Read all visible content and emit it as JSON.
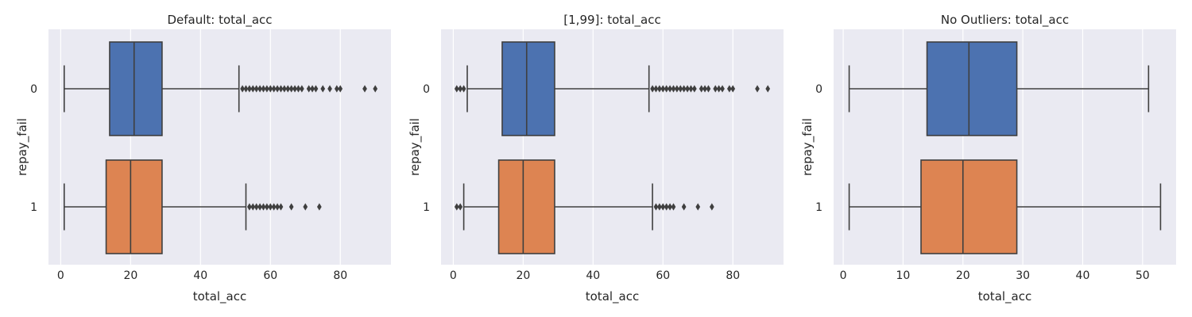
{
  "chart_data": [
    {
      "type": "boxplot",
      "title": "Default: total_acc",
      "xlabel": "total_acc",
      "ylabel": "repay_fail",
      "xlim": [
        -3.5,
        94.5
      ],
      "xticks": [
        0,
        20,
        40,
        60,
        80
      ],
      "orientation": "horizontal",
      "grid": true,
      "categories": [
        "0",
        "1"
      ],
      "colors": [
        "#4c72b0",
        "#dd8452"
      ],
      "boxes": [
        {
          "category": "0",
          "whisker_low": 1,
          "q1": 14,
          "median": 21,
          "q3": 29,
          "whisker_high": 51,
          "outliers": [
            52,
            53,
            54,
            55,
            56,
            57,
            58,
            59,
            60,
            61,
            62,
            63,
            64,
            65,
            66,
            67,
            68,
            69,
            71,
            72,
            73,
            75,
            77,
            79,
            80,
            87,
            90
          ]
        },
        {
          "category": "1",
          "whisker_low": 1,
          "q1": 13,
          "median": 20,
          "q3": 29,
          "whisker_high": 53,
          "outliers": [
            54,
            55,
            56,
            57,
            58,
            59,
            60,
            61,
            62,
            63,
            66,
            70,
            74
          ]
        }
      ]
    },
    {
      "type": "boxplot",
      "title": "[1,99]: total_acc",
      "xlabel": "total_acc",
      "ylabel": "repay_fail",
      "xlim": [
        -3.5,
        94.5
      ],
      "xticks": [
        0,
        20,
        40,
        60,
        80
      ],
      "orientation": "horizontal",
      "grid": true,
      "categories": [
        "0",
        "1"
      ],
      "colors": [
        "#4c72b0",
        "#dd8452"
      ],
      "boxes": [
        {
          "category": "0",
          "whisker_low": 4,
          "q1": 14,
          "median": 21,
          "q3": 29,
          "whisker_high": 56,
          "outliers": [
            1,
            2,
            3,
            57,
            58,
            59,
            60,
            61,
            62,
            63,
            64,
            65,
            66,
            67,
            68,
            69,
            71,
            72,
            73,
            75,
            76,
            77,
            79,
            80,
            87,
            90
          ]
        },
        {
          "category": "1",
          "whisker_low": 3,
          "q1": 13,
          "median": 20,
          "q3": 29,
          "whisker_high": 57,
          "outliers": [
            1,
            2,
            58,
            59,
            60,
            61,
            62,
            63,
            66,
            70,
            74
          ]
        }
      ]
    },
    {
      "type": "boxplot",
      "title": "No Outliers: total_acc",
      "xlabel": "total_acc",
      "ylabel": "repay_fail",
      "xlim": [
        -1.6,
        55.6
      ],
      "xticks": [
        0,
        10,
        20,
        30,
        40,
        50
      ],
      "orientation": "horizontal",
      "grid": true,
      "categories": [
        "0",
        "1"
      ],
      "colors": [
        "#4c72b0",
        "#dd8452"
      ],
      "boxes": [
        {
          "category": "0",
          "whisker_low": 1,
          "q1": 14,
          "median": 21,
          "q3": 29,
          "whisker_high": 51,
          "outliers": []
        },
        {
          "category": "1",
          "whisker_low": 1,
          "q1": 13,
          "median": 20,
          "q3": 29,
          "whisker_high": 53,
          "outliers": []
        }
      ]
    }
  ]
}
